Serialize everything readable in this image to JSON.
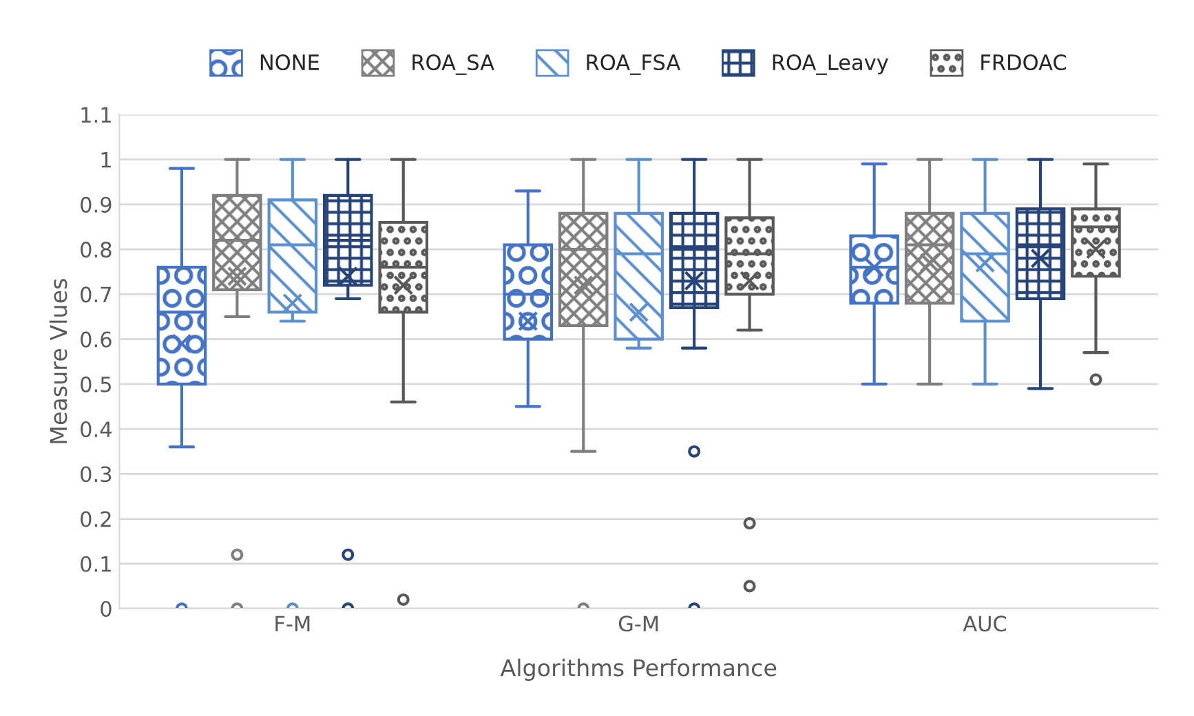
{
  "chart_data": {
    "type": "box",
    "xlabel": "Algorithms Performance",
    "ylabel": "Measure Vlues",
    "categories": [
      "F-M",
      "G-M",
      "AUC"
    ],
    "ylim": [
      0,
      1.1
    ],
    "yticks": [
      0,
      0.1,
      0.2,
      0.3,
      0.4,
      0.5,
      0.6,
      0.7,
      0.8,
      0.9,
      1,
      1.1
    ],
    "grid": "y",
    "legend": "top",
    "series": [
      {
        "name": "NONE",
        "color": "#4472c4",
        "boxes": [
          {
            "low": 0.36,
            "q1": 0.5,
            "median": 0.66,
            "q3": 0.76,
            "high": 0.98,
            "mean": 0.59,
            "outliers": [
              0
            ]
          },
          {
            "low": 0.45,
            "q1": 0.6,
            "median": 0.7,
            "q3": 0.81,
            "high": 0.93,
            "mean": 0.64
          },
          {
            "low": 0.5,
            "q1": 0.68,
            "median": 0.76,
            "q3": 0.83,
            "high": 0.99,
            "mean": 0.76
          }
        ]
      },
      {
        "name": "ROA_SA",
        "color": "#7f7f7f",
        "boxes": [
          {
            "low": 0.65,
            "q1": 0.71,
            "median": 0.82,
            "q3": 0.92,
            "high": 1.0,
            "mean": 0.74,
            "outliers": [
              0.12,
              0
            ]
          },
          {
            "low": 0.35,
            "q1": 0.63,
            "median": 0.8,
            "q3": 0.88,
            "high": 1.0,
            "mean": 0.72,
            "outliers": [
              0
            ]
          },
          {
            "low": 0.5,
            "q1": 0.68,
            "median": 0.81,
            "q3": 0.88,
            "high": 1.0,
            "mean": 0.77
          }
        ]
      },
      {
        "name": "ROA_FSA",
        "color": "#5b8fd0",
        "boxes": [
          {
            "low": 0.64,
            "q1": 0.66,
            "median": 0.81,
            "q3": 0.91,
            "high": 1.0,
            "mean": 0.68,
            "outliers": [
              0
            ]
          },
          {
            "low": 0.58,
            "q1": 0.6,
            "median": 0.79,
            "q3": 0.88,
            "high": 1.0,
            "mean": 0.66
          },
          {
            "low": 0.5,
            "q1": 0.64,
            "median": 0.79,
            "q3": 0.88,
            "high": 1.0,
            "mean": 0.77
          }
        ]
      },
      {
        "name": "ROA_Leavy",
        "color": "#264478",
        "boxes": [
          {
            "low": 0.69,
            "q1": 0.72,
            "median": 0.82,
            "q3": 0.92,
            "high": 1.0,
            "mean": 0.74,
            "outliers": [
              0.12,
              0
            ]
          },
          {
            "low": 0.58,
            "q1": 0.67,
            "median": 0.8,
            "q3": 0.88,
            "high": 1.0,
            "mean": 0.73,
            "outliers": [
              0.35,
              0
            ]
          },
          {
            "low": 0.49,
            "q1": 0.69,
            "median": 0.81,
            "q3": 0.89,
            "high": 1.0,
            "mean": 0.78
          }
        ]
      },
      {
        "name": "FRDOAC",
        "color": "#595959",
        "boxes": [
          {
            "low": 0.46,
            "q1": 0.66,
            "median": 0.76,
            "q3": 0.86,
            "high": 1.0,
            "mean": 0.72,
            "outliers": [
              0.02
            ]
          },
          {
            "low": 0.62,
            "q1": 0.7,
            "median": 0.79,
            "q3": 0.87,
            "high": 1.0,
            "mean": 0.73,
            "outliers": [
              0.19,
              0.05
            ]
          },
          {
            "low": 0.57,
            "q1": 0.74,
            "median": 0.85,
            "q3": 0.89,
            "high": 0.99,
            "mean": 0.8,
            "outliers": [
              0.51
            ]
          }
        ]
      }
    ]
  }
}
